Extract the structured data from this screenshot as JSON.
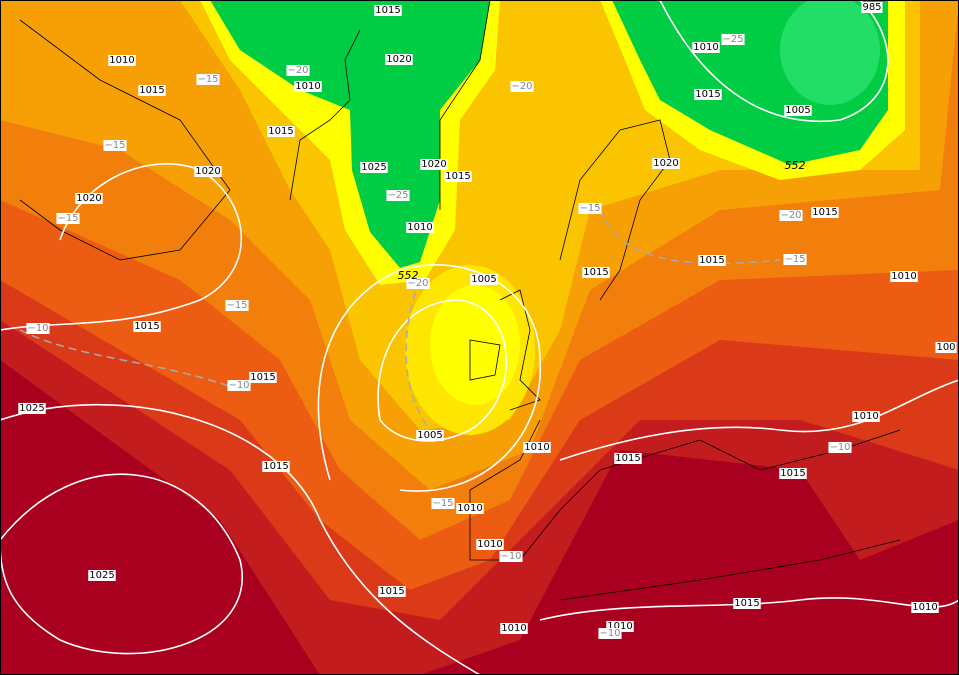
{
  "isobar_labels": [
    "1015",
    "1010",
    "1015",
    "1010",
    "1020",
    "1015",
    "1020",
    "1025",
    "1020",
    "1015",
    "1020",
    "1010",
    "1005",
    "1015",
    "1015",
    "1025",
    "1005",
    "1010",
    "1015",
    "1010",
    "1010",
    "1025",
    "1015",
    "1010",
    "1010",
    "1015",
    "1010",
    "1015",
    "1015",
    "1010",
    "1015",
    "1015",
    "1010",
    "1015",
    "1020",
    "1010",
    "1015",
    "1005",
    "985",
    "100"
  ],
  "temperature_labels": [
    "−15",
    "−20",
    "−15",
    "−15",
    "−25",
    "−20",
    "−25",
    "−15",
    "−20",
    "−15",
    "−10",
    "−10",
    "−15",
    "−10",
    "−10",
    "−20",
    "−15",
    "−10"
  ],
  "height_labels": [
    "552",
    "552"
  ]
}
